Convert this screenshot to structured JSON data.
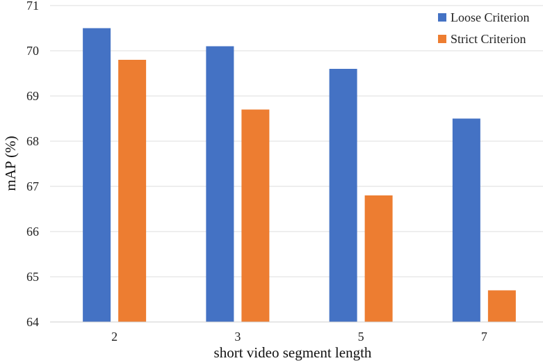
{
  "chart_data": {
    "type": "bar",
    "categories": [
      "2",
      "3",
      "5",
      "7"
    ],
    "series": [
      {
        "name": "Loose Criterion",
        "color": "#4472C4",
        "values": [
          70.5,
          70.1,
          69.6,
          68.5
        ]
      },
      {
        "name": "Strict Criterion",
        "color": "#ED7D31",
        "values": [
          69.8,
          68.7,
          66.8,
          64.7
        ]
      }
    ],
    "title": "",
    "xlabel": "short video segment length",
    "ylabel": "mAP (%)",
    "ylim": [
      64,
      71
    ],
    "yticks": [
      "64",
      "65",
      "66",
      "67",
      "68",
      "69",
      "70",
      "71"
    ],
    "grid": true,
    "legend_position": "top-right"
  }
}
